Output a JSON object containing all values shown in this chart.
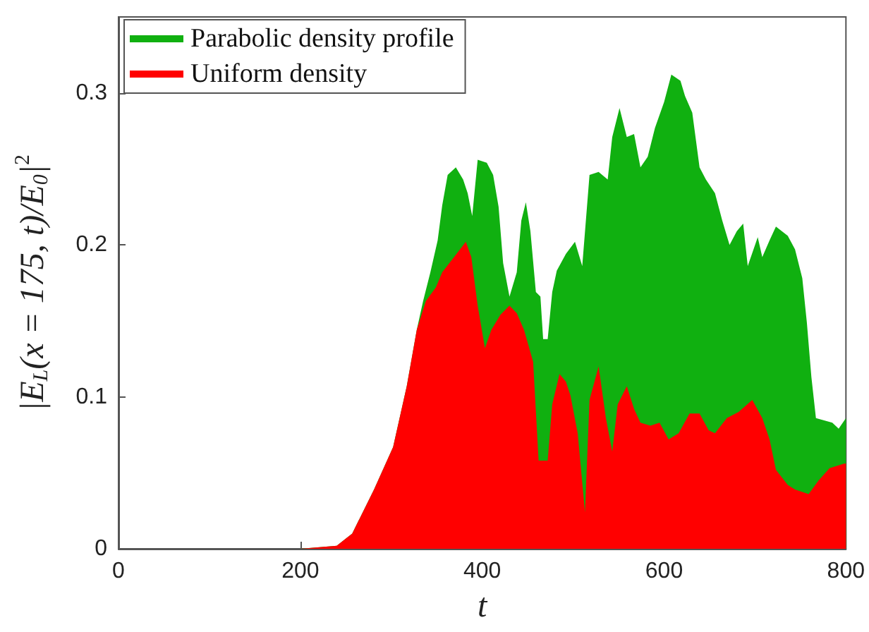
{
  "chart_data": {
    "type": "area",
    "xlabel": "t",
    "ylabel": "|E$_{L}$(x = 175, t)/E$_{0}$|$^{2}$",
    "xlim": [
      0,
      800
    ],
    "xticks": [
      0,
      200,
      400,
      600,
      800
    ],
    "ylim": [
      0,
      0.35
    ],
    "yticks": [
      0,
      0.1,
      0.2,
      0.3
    ],
    "grid": false,
    "legend": "top left",
    "series": [
      {
        "name": "Parabolic density profile",
        "color": "#10b010",
        "x": [
          0,
          200,
          240,
          257,
          281,
          302,
          317,
          328,
          335,
          343,
          351,
          356,
          362,
          371,
          379,
          384,
          389,
          395,
          405,
          412,
          418,
          423,
          430,
          438,
          443,
          448,
          453,
          459,
          464,
          467,
          472,
          477,
          482,
          492,
          502,
          510,
          518,
          528,
          538,
          543,
          551,
          559,
          567,
          574,
          582,
          590,
          600,
          608,
          618,
          623,
          631,
          639,
          646,
          656,
          664,
          672,
          680,
          687,
          692,
          703,
          708,
          716,
          723,
          736,
          744,
          752,
          757,
          762,
          767,
          785,
          792,
          800
        ],
        "values": [
          0,
          0,
          0.002,
          0.01,
          0.039,
          0.067,
          0.107,
          0.144,
          0.163,
          0.182,
          0.203,
          0.226,
          0.246,
          0.251,
          0.243,
          0.234,
          0.219,
          0.256,
          0.254,
          0.246,
          0.225,
          0.188,
          0.166,
          0.182,
          0.216,
          0.228,
          0.209,
          0.169,
          0.166,
          0.138,
          0.138,
          0.169,
          0.183,
          0.194,
          0.202,
          0.186,
          0.246,
          0.248,
          0.243,
          0.271,
          0.29,
          0.271,
          0.273,
          0.251,
          0.258,
          0.277,
          0.294,
          0.312,
          0.308,
          0.298,
          0.287,
          0.251,
          0.243,
          0.234,
          0.216,
          0.2,
          0.209,
          0.214,
          0.186,
          0.205,
          0.192,
          0.203,
          0.212,
          0.206,
          0.197,
          0.178,
          0.149,
          0.113,
          0.086,
          0.083,
          0.079,
          0.086
        ]
      },
      {
        "name": "Uniform density",
        "color": "#ff0000",
        "x": [
          0,
          200,
          240,
          257,
          281,
          302,
          317,
          328,
          338,
          349,
          356,
          369,
          382,
          388,
          395,
          403,
          410,
          420,
          430,
          438,
          446,
          456,
          462,
          472,
          477,
          485,
          492,
          497,
          505,
          513,
          518,
          528,
          536,
          543,
          549,
          559,
          567,
          574,
          585,
          595,
          605,
          616,
          628,
          639,
          649,
          656,
          669,
          682,
          697,
          708,
          716,
          723,
          736,
          744,
          759,
          770,
          782,
          798,
          800
        ],
        "values": [
          0,
          0,
          0.002,
          0.01,
          0.039,
          0.067,
          0.107,
          0.144,
          0.163,
          0.172,
          0.182,
          0.192,
          0.202,
          0.192,
          0.16,
          0.132,
          0.144,
          0.154,
          0.16,
          0.155,
          0.144,
          0.123,
          0.058,
          0.058,
          0.095,
          0.115,
          0.11,
          0.101,
          0.076,
          0.024,
          0.098,
          0.12,
          0.086,
          0.064,
          0.095,
          0.107,
          0.092,
          0.083,
          0.081,
          0.083,
          0.072,
          0.076,
          0.089,
          0.089,
          0.078,
          0.076,
          0.086,
          0.09,
          0.098,
          0.086,
          0.072,
          0.052,
          0.042,
          0.039,
          0.036,
          0.045,
          0.053,
          0.056,
          0.056
        ]
      }
    ]
  }
}
